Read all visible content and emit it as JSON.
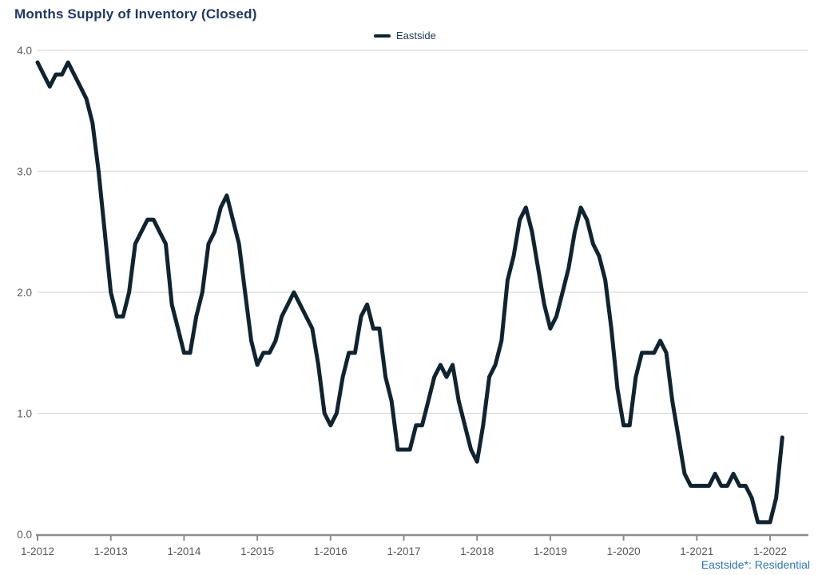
{
  "title": "Months Supply of Inventory (Closed)",
  "legend": {
    "label": "Eastside"
  },
  "footnote": "Eastside*: Residential",
  "colors": {
    "title_text": "#1f3864",
    "legend_text": "#17365d",
    "series_line": "#0f2430",
    "gridline": "#d9d9d9",
    "axis_line": "#8c8c8c",
    "tick_label": "#595959",
    "footnote_text": "#2e75b6",
    "background": "#ffffff"
  },
  "chart_data": {
    "type": "line",
    "title": "Months Supply of Inventory (Closed)",
    "x_unit": "month",
    "x_range": "Jan 2012 - Mar 2022",
    "x_tick_labels": [
      "1-2012",
      "1-2013",
      "1-2014",
      "1-2015",
      "1-2016",
      "1-2017",
      "1-2018",
      "1-2019",
      "1-2020",
      "1-2021",
      "1-2022"
    ],
    "y_tick_labels": [
      "0.0",
      "1.0",
      "2.0",
      "3.0",
      "4.0"
    ],
    "y_ticks": [
      0,
      1,
      2,
      3,
      4
    ],
    "ylim": [
      0,
      4
    ],
    "grid": "horizontal-only",
    "legend_position": "top-center",
    "series": [
      {
        "name": "Eastside",
        "start": "1-2012",
        "interval": "monthly",
        "values": [
          3.9,
          3.8,
          3.7,
          3.8,
          3.8,
          3.9,
          3.8,
          3.7,
          3.6,
          3.4,
          3.0,
          2.5,
          2.0,
          1.8,
          1.8,
          2.0,
          2.4,
          2.5,
          2.6,
          2.6,
          2.5,
          2.4,
          1.9,
          1.7,
          1.5,
          1.5,
          1.8,
          2.0,
          2.4,
          2.5,
          2.7,
          2.8,
          2.6,
          2.4,
          2.0,
          1.6,
          1.4,
          1.5,
          1.5,
          1.6,
          1.8,
          1.9,
          2.0,
          1.9,
          1.8,
          1.7,
          1.4,
          1.0,
          0.9,
          1.0,
          1.3,
          1.5,
          1.5,
          1.8,
          1.9,
          1.7,
          1.7,
          1.3,
          1.1,
          0.7,
          0.7,
          0.7,
          0.9,
          0.9,
          1.1,
          1.3,
          1.4,
          1.3,
          1.4,
          1.1,
          0.9,
          0.7,
          0.6,
          0.9,
          1.3,
          1.4,
          1.6,
          2.1,
          2.3,
          2.6,
          2.7,
          2.5,
          2.2,
          1.9,
          1.7,
          1.8,
          2.0,
          2.2,
          2.5,
          2.7,
          2.6,
          2.4,
          2.3,
          2.1,
          1.7,
          1.2,
          0.9,
          0.9,
          1.3,
          1.5,
          1.5,
          1.5,
          1.6,
          1.5,
          1.1,
          0.8,
          0.5,
          0.4,
          0.4,
          0.4,
          0.4,
          0.5,
          0.4,
          0.4,
          0.5,
          0.4,
          0.4,
          0.3,
          0.1,
          0.1,
          0.1,
          0.3,
          0.8
        ]
      }
    ]
  }
}
